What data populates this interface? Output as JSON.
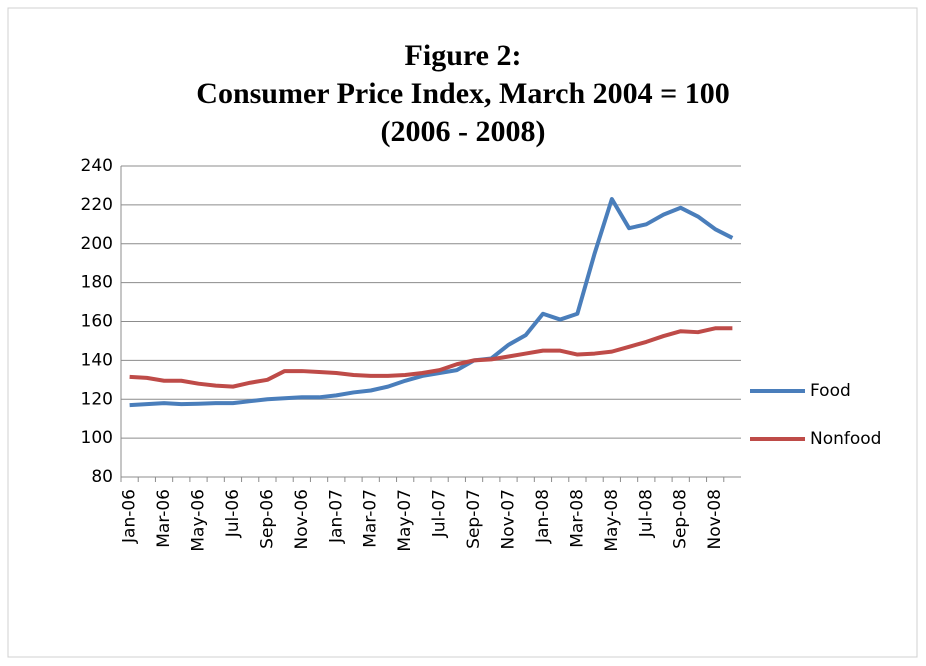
{
  "chart_data": {
    "type": "line",
    "title": [
      "Figure 2:",
      "Consumer Price Index, March 2004 = 100",
      "(2006 - 2008)"
    ],
    "categories": [
      "Jan-06",
      null,
      "Mar-06",
      null,
      "May-06",
      null,
      "Jul-06",
      null,
      "Sep-06",
      null,
      "Nov-06",
      null,
      "Jan-07",
      null,
      "Mar-07",
      null,
      "May-07",
      null,
      "Jul-07",
      null,
      "Sep-07",
      null,
      "Nov-07",
      null,
      "Jan-08",
      null,
      "Mar-08",
      null,
      "May-08",
      null,
      "Jul-08",
      null,
      "Sep-08",
      null,
      "Nov-08",
      null
    ],
    "series": [
      {
        "name": "Food",
        "color": "#4a7ebb",
        "values": [
          117,
          117.5,
          118,
          117.5,
          117.7,
          118,
          118,
          119,
          120,
          120.5,
          121,
          121,
          122,
          123.5,
          124.5,
          126.5,
          129.5,
          132,
          133.5,
          135,
          140,
          141,
          148,
          153,
          164,
          161,
          164,
          195,
          223,
          208,
          210,
          215,
          218.5,
          214,
          207.5,
          203
        ]
      },
      {
        "name": "Nonfood",
        "color": "#be4b48",
        "values": [
          131.5,
          131,
          129.5,
          129.5,
          128,
          127,
          126.5,
          128.5,
          130,
          134.5,
          134.5,
          134,
          133.5,
          132.5,
          132,
          132,
          132.5,
          133.5,
          135,
          138,
          140,
          140.5,
          142,
          143.5,
          145,
          145,
          143,
          143.5,
          144.5,
          147,
          149.5,
          152.5,
          155,
          154.5,
          156.5,
          156.5
        ]
      }
    ],
    "ylim": [
      80,
      240
    ],
    "yticks": [
      80,
      100,
      120,
      140,
      160,
      180,
      200,
      220,
      240
    ],
    "grid": true,
    "legend": "right"
  }
}
